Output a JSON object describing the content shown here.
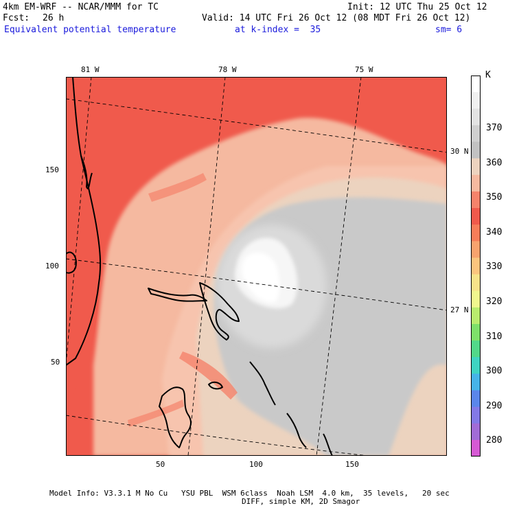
{
  "header": {
    "model_title": "4km EM-WRF -- NCAR/MMM for TC",
    "init_label": "Init: 12 UTC Thu 25 Oct 12",
    "forecast_label": "Fcst:",
    "forecast_hours": "26 h",
    "valid_label": "Valid: 14 UTC Fri 26 Oct 12 (08 MDT Fri 26 Oct 12)",
    "field_name": "Equivalent potential temperature",
    "level_label": "at k-index =  35",
    "smoothing_label": "sm= 6"
  },
  "map": {
    "lon_labels": [
      "81 W",
      "78 W",
      "75 W"
    ],
    "lat_labels": [
      "30 N",
      "27 N"
    ],
    "x_ticks": [
      "50",
      "100",
      "150"
    ],
    "y_ticks": [
      "150",
      "100",
      "50"
    ]
  },
  "colorbar": {
    "unit": "K",
    "labels": [
      "370",
      "360",
      "350",
      "340",
      "330",
      "320",
      "310",
      "300",
      "290",
      "280"
    ],
    "colors": [
      "#ffffff",
      "#f0f0f0",
      "#e3e3e3",
      "#d0d0d0",
      "#c2c2c2",
      "#ecd3bf",
      "#f5b9a0",
      "#f5836b",
      "#f05a4c",
      "#f77d5a",
      "#f8a36e",
      "#fbc57e",
      "#f7e38a",
      "#f0f78e",
      "#b9ec6e",
      "#7ee06a",
      "#52d88a",
      "#3fd4c2",
      "#46b4e8",
      "#5b86ea",
      "#8379e6",
      "#a16cd6",
      "#d65ad4"
    ]
  },
  "footer": {
    "line1": "Model Info: V3.3.1 M No Cu   YSU PBL  WSM 6class  Noah LSM  4.0 km,  35 levels,   20 sec",
    "line2": "DIFF, simple KM, 2D Smagor"
  }
}
